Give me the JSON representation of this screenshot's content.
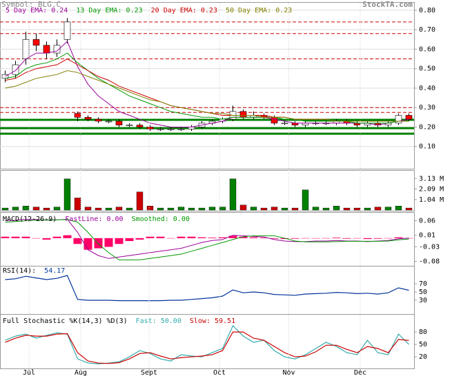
{
  "symbol": "Symbol: BLG.C",
  "source": "StockTA.com",
  "x_axis": {
    "xlim": [
      -0.5,
      39.5
    ],
    "xticks": [
      {
        "value": 2.3,
        "label": "Jul"
      },
      {
        "value": 7.3,
        "label": "Aug"
      },
      {
        "value": 13.9,
        "label": "Sept"
      },
      {
        "value": 20.7,
        "label": "Oct"
      },
      {
        "value": 27.4,
        "label": "Nov"
      },
      {
        "value": 34.3,
        "label": "Dec"
      }
    ]
  },
  "chart_data": [
    {
      "type": "candlestick",
      "grid": true,
      "up_color": "#ffffff",
      "down_color": "#ff0000",
      "ylim": [
        0,
        0.835
      ],
      "yticks": [
        {
          "value": 0.8,
          "label": "0.80"
        },
        {
          "value": 0.7,
          "label": "0.70"
        },
        {
          "value": 0.6,
          "label": "0.60"
        },
        {
          "value": 0.5,
          "label": "0.50"
        },
        {
          "value": 0.4,
          "label": "0.40"
        },
        {
          "value": 0.3,
          "label": "0.30"
        },
        {
          "value": 0.2,
          "label": "0.20"
        },
        {
          "value": 0.1,
          "label": "0.10"
        }
      ],
      "open": [
        0.45,
        0.47,
        0.55,
        0.65,
        0.62,
        0.58,
        0.65,
        0.27,
        0.25,
        0.24,
        0.23,
        0.23,
        0.21,
        0.21,
        0.2,
        0.19,
        0.19,
        0.19,
        0.19,
        0.2,
        0.22,
        0.23,
        0.24,
        0.28,
        0.25,
        0.26,
        0.25,
        0.22,
        0.22,
        0.21,
        0.22,
        0.22,
        0.22,
        0.23,
        0.22,
        0.21,
        0.22,
        0.21,
        0.22,
        0.26
      ],
      "high": [
        0.49,
        0.54,
        0.69,
        0.68,
        0.64,
        0.65,
        0.76,
        0.28,
        0.26,
        0.25,
        0.24,
        0.24,
        0.22,
        0.22,
        0.21,
        0.2,
        0.2,
        0.2,
        0.21,
        0.23,
        0.24,
        0.25,
        0.31,
        0.29,
        0.28,
        0.27,
        0.26,
        0.23,
        0.23,
        0.23,
        0.23,
        0.23,
        0.24,
        0.24,
        0.23,
        0.23,
        0.23,
        0.23,
        0.27,
        0.27
      ],
      "low": [
        0.43,
        0.45,
        0.52,
        0.59,
        0.55,
        0.56,
        0.63,
        0.23,
        0.23,
        0.22,
        0.22,
        0.2,
        0.2,
        0.19,
        0.18,
        0.18,
        0.18,
        0.18,
        0.18,
        0.19,
        0.21,
        0.22,
        0.23,
        0.24,
        0.24,
        0.24,
        0.21,
        0.21,
        0.2,
        0.2,
        0.21,
        0.21,
        0.21,
        0.21,
        0.2,
        0.2,
        0.2,
        0.2,
        0.21,
        0.23
      ],
      "close": [
        0.47,
        0.52,
        0.65,
        0.62,
        0.58,
        0.62,
        0.74,
        0.25,
        0.24,
        0.23,
        0.23,
        0.21,
        0.21,
        0.2,
        0.19,
        0.19,
        0.19,
        0.19,
        0.2,
        0.22,
        0.23,
        0.24,
        0.28,
        0.25,
        0.26,
        0.25,
        0.22,
        0.22,
        0.21,
        0.22,
        0.22,
        0.22,
        0.23,
        0.22,
        0.21,
        0.22,
        0.21,
        0.22,
        0.26,
        0.24
      ],
      "series": [
        {
          "name": "5 Day EMA: 0.24",
          "color": "#990099",
          "values": [
            0.46,
            0.49,
            0.55,
            0.58,
            0.58,
            0.59,
            0.64,
            0.51,
            0.42,
            0.36,
            0.32,
            0.28,
            0.26,
            0.24,
            0.22,
            0.21,
            0.2,
            0.2,
            0.2,
            0.21,
            0.22,
            0.23,
            0.25,
            0.25,
            0.25,
            0.25,
            0.24,
            0.23,
            0.22,
            0.22,
            0.22,
            0.22,
            0.22,
            0.22,
            0.22,
            0.22,
            0.21,
            0.22,
            0.23,
            0.24
          ]
        },
        {
          "name": "13 Day EMA: 0.23",
          "color": "#009900",
          "values": [
            0.45,
            0.46,
            0.5,
            0.52,
            0.53,
            0.55,
            0.58,
            0.53,
            0.49,
            0.45,
            0.42,
            0.39,
            0.36,
            0.34,
            0.32,
            0.3,
            0.28,
            0.27,
            0.26,
            0.25,
            0.25,
            0.24,
            0.25,
            0.25,
            0.25,
            0.25,
            0.25,
            0.24,
            0.24,
            0.23,
            0.23,
            0.23,
            0.23,
            0.23,
            0.22,
            0.22,
            0.22,
            0.22,
            0.23,
            0.23
          ]
        },
        {
          "name": "20 Day EMA: 0.23",
          "color": "#cc0000",
          "values": [
            0.44,
            0.45,
            0.48,
            0.5,
            0.51,
            0.52,
            0.55,
            0.52,
            0.49,
            0.46,
            0.44,
            0.41,
            0.39,
            0.37,
            0.35,
            0.33,
            0.31,
            0.3,
            0.29,
            0.28,
            0.27,
            0.26,
            0.26,
            0.26,
            0.26,
            0.26,
            0.25,
            0.25,
            0.24,
            0.24,
            0.24,
            0.24,
            0.23,
            0.23,
            0.23,
            0.23,
            0.23,
            0.23,
            0.23,
            0.23
          ]
        },
        {
          "name": "50 Day EMA: 0.23",
          "color": "#808000",
          "values": [
            0.4,
            0.41,
            0.43,
            0.45,
            0.46,
            0.47,
            0.49,
            0.48,
            0.46,
            0.44,
            0.42,
            0.4,
            0.38,
            0.36,
            0.34,
            0.33,
            0.31,
            0.3,
            0.29,
            0.28,
            0.27,
            0.27,
            0.26,
            0.26,
            0.26,
            0.25,
            0.25,
            0.25,
            0.24,
            0.24,
            0.24,
            0.24,
            0.23,
            0.23,
            0.23,
            0.23,
            0.23,
            0.23,
            0.23,
            0.23
          ]
        }
      ],
      "resistance": {
        "color": "#cc0000",
        "values": [
          0.74,
          0.68,
          0.55,
          0.3,
          0.275
        ]
      },
      "support": {
        "color": "#008000",
        "values": [
          0.237,
          0.194,
          0.166
        ]
      }
    },
    {
      "type": "bar",
      "up_color": "#008000",
      "down_color": "#cc0000",
      "ylim": [
        0,
        3.9
      ],
      "yticks": [
        {
          "value": 3.13,
          "label": "3.13 M"
        },
        {
          "value": 2.09,
          "label": "2.09 M"
        },
        {
          "value": 1.04,
          "label": "1.04 M"
        }
      ],
      "values": [
        0.2,
        0.3,
        0.4,
        0.3,
        0.2,
        0.3,
        3.1,
        1.2,
        0.3,
        0.2,
        0.2,
        0.3,
        0.2,
        1.8,
        0.4,
        0.2,
        0.2,
        0.3,
        0.2,
        0.2,
        0.3,
        0.3,
        3.1,
        0.5,
        0.3,
        0.2,
        0.3,
        0.2,
        0.2,
        2.0,
        0.3,
        0.2,
        0.4,
        0.2,
        0.2,
        0.2,
        0.3,
        0.3,
        0.4,
        0.2
      ]
    },
    {
      "type": "combo",
      "title": "MACD(12-26-9)",
      "ylim": [
        -0.093,
        0.085
      ],
      "yticks": [
        0.06,
        0.01,
        -0.03,
        -0.08
      ],
      "bars": {
        "color": "#ff0066",
        "values": [
          0.005,
          0.005,
          0.005,
          0,
          -0.005,
          0.005,
          0.01,
          -0.02,
          -0.04,
          -0.035,
          -0.03,
          -0.02,
          -0.01,
          -0.005,
          0.005,
          0.005,
          0,
          0.005,
          0.005,
          0.003,
          0.002,
          0.003,
          0.008,
          0.005,
          0.003,
          0.002,
          -0.002,
          -0.003,
          -0.002,
          0,
          0,
          0,
          0.002,
          -0.002,
          0,
          -0.003,
          -0.002,
          0,
          0.003,
          0
        ]
      },
      "series": [
        {
          "name": "FastLine: 0.00",
          "color": "#990099",
          "values": [
            0.06,
            0.062,
            0.065,
            0.064,
            0.062,
            0.063,
            0.065,
            0.02,
            -0.04,
            -0.06,
            -0.07,
            -0.065,
            -0.06,
            -0.055,
            -0.05,
            -0.045,
            -0.04,
            -0.035,
            -0.025,
            -0.015,
            -0.008,
            -0.005,
            0.01,
            0.008,
            0.006,
            0.004,
            -0.005,
            -0.01,
            -0.012,
            -0.012,
            -0.01,
            -0.01,
            -0.008,
            -0.01,
            -0.01,
            -0.012,
            -0.01,
            -0.008,
            -0.002,
            0
          ]
        },
        {
          "name": "Smoothed: 0.00",
          "color": "#009900",
          "values": [
            0.055,
            0.057,
            0.06,
            0.062,
            0.063,
            0.063,
            0.064,
            0.055,
            0.02,
            -0.02,
            -0.05,
            -0.075,
            -0.075,
            -0.075,
            -0.07,
            -0.065,
            -0.06,
            -0.055,
            -0.045,
            -0.035,
            -0.025,
            -0.015,
            -0.005,
            0.005,
            0.008,
            0.008,
            0.008,
            0,
            -0.01,
            -0.013,
            -0.013,
            -0.013,
            -0.012,
            -0.011,
            -0.011,
            -0.011,
            -0.011,
            -0.01,
            -0.006,
            -0.003
          ]
        }
      ]
    },
    {
      "type": "line",
      "title": "RSI(14):",
      "reading": "54.17",
      "ylim": [
        0,
        115
      ],
      "yticks": [
        70,
        50,
        30
      ],
      "series": [
        {
          "color": "#003399",
          "values": [
            80,
            82,
            88,
            84,
            80,
            83,
            90,
            32,
            30,
            30,
            30,
            29,
            29,
            29,
            29,
            29,
            30,
            30,
            32,
            34,
            36,
            40,
            55,
            48,
            50,
            48,
            44,
            43,
            42,
            45,
            46,
            47,
            49,
            48,
            46,
            47,
            45,
            48,
            60,
            54.17
          ]
        }
      ]
    },
    {
      "type": "line",
      "title": "Full Stochastic %K(14,3) %D(3)",
      "ylim": [
        -8,
        120
      ],
      "yticks": [
        80,
        50,
        20
      ],
      "series": [
        {
          "name": "Fast: 50.00",
          "color": "#33aaaa",
          "values": [
            60,
            70,
            75,
            65,
            72,
            78,
            75,
            15,
            5,
            3,
            5,
            8,
            20,
            35,
            28,
            15,
            10,
            25,
            22,
            20,
            30,
            40,
            95,
            70,
            55,
            60,
            35,
            20,
            15,
            25,
            40,
            55,
            45,
            30,
            25,
            60,
            30,
            25,
            75,
            50
          ]
        },
        {
          "name": "Slow: 59.51",
          "color": "#cc0000",
          "values": [
            55,
            65,
            72,
            70,
            70,
            75,
            76,
            30,
            10,
            5,
            4,
            6,
            15,
            28,
            30,
            22,
            15,
            18,
            20,
            22,
            25,
            35,
            80,
            80,
            65,
            60,
            45,
            30,
            20,
            22,
            32,
            48,
            48,
            38,
            30,
            45,
            40,
            30,
            62,
            59.51
          ]
        }
      ]
    }
  ]
}
